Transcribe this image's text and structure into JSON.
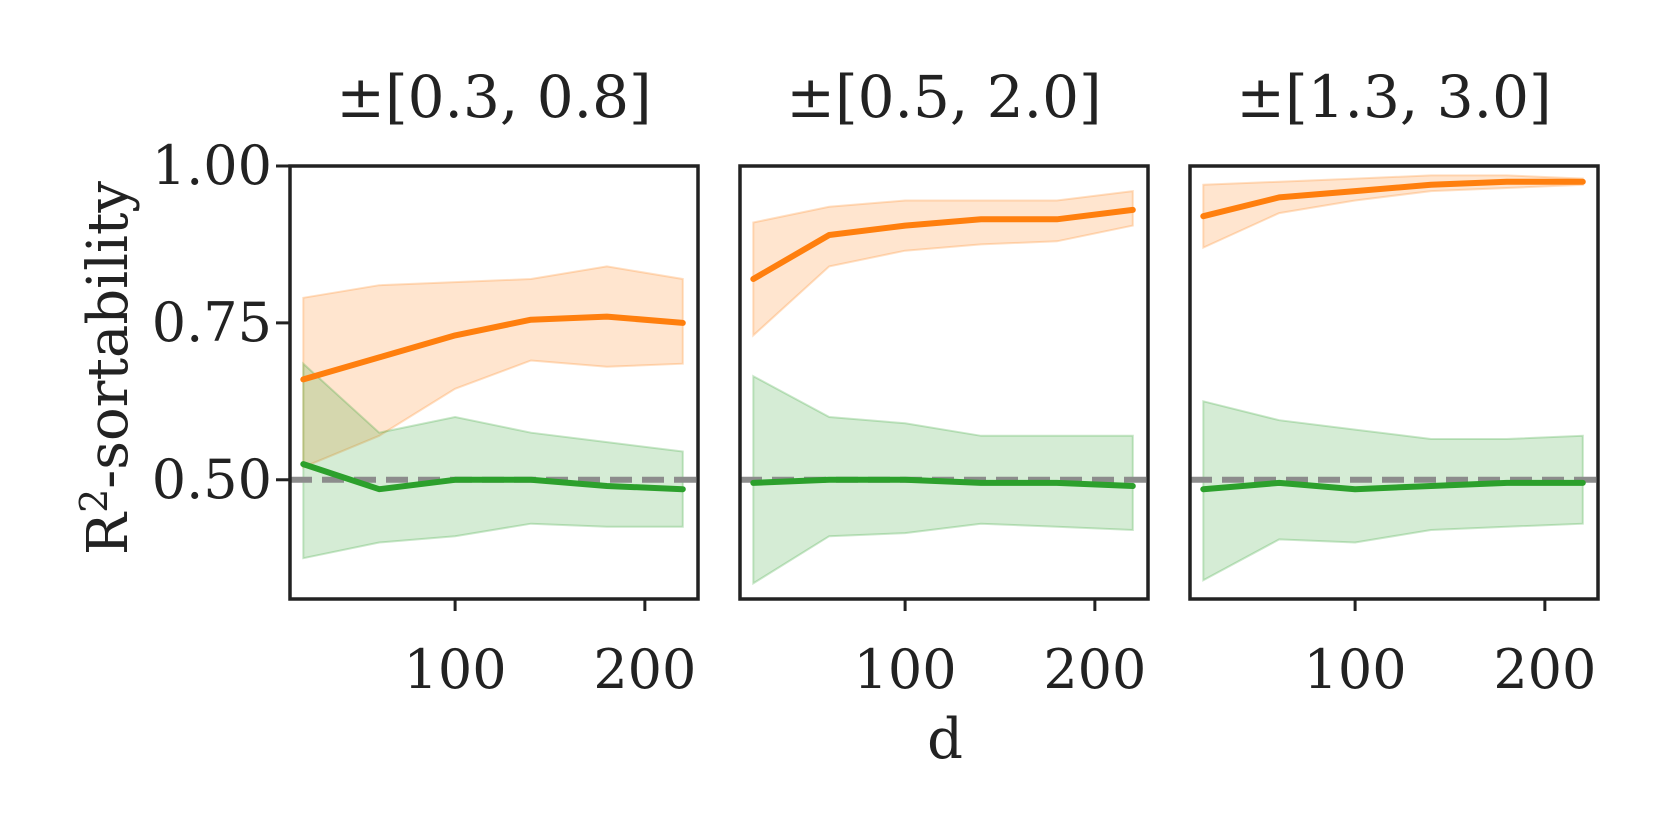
{
  "chart_data": {
    "type": "line",
    "ylabel": "R",
    "ylabel_sup": "2",
    "ylabel_suffix": "-sortability",
    "xlabel": "d",
    "xlim": [
      13,
      228
    ],
    "ylim": [
      0.31,
      1.0
    ],
    "yticks": [
      0.5,
      0.75,
      1.0
    ],
    "ytick_labels": [
      "0.50",
      "0.75",
      "1.00"
    ],
    "xticks": [
      100,
      200
    ],
    "xtick_labels": [
      "100",
      "200"
    ],
    "reference_line": {
      "y": 0.5,
      "color": "#8c8c8c",
      "style": "dashed"
    },
    "series_colors": {
      "orange": "#ff7f0e",
      "green": "#2ca02c"
    },
    "panels": [
      {
        "title": "±[0.3, 0.8]",
        "x": [
          20,
          60,
          100,
          140,
          180,
          220
        ],
        "series": [
          {
            "name": "orange",
            "color": "#ff7f0e",
            "values": [
              0.66,
              0.695,
              0.73,
              0.755,
              0.76,
              0.75
            ],
            "lower": [
              0.52,
              0.57,
              0.645,
              0.69,
              0.68,
              0.685
            ],
            "upper": [
              0.79,
              0.81,
              0.815,
              0.82,
              0.84,
              0.82
            ]
          },
          {
            "name": "green",
            "color": "#2ca02c",
            "values": [
              0.525,
              0.485,
              0.5,
              0.5,
              0.49,
              0.485
            ],
            "lower": [
              0.375,
              0.4,
              0.41,
              0.43,
              0.425,
              0.425
            ],
            "upper": [
              0.685,
              0.575,
              0.6,
              0.575,
              0.56,
              0.545
            ]
          }
        ]
      },
      {
        "title": "±[0.5, 2.0]",
        "x": [
          20,
          60,
          100,
          140,
          180,
          220
        ],
        "series": [
          {
            "name": "orange",
            "color": "#ff7f0e",
            "values": [
              0.82,
              0.89,
              0.905,
              0.915,
              0.915,
              0.93
            ],
            "lower": [
              0.73,
              0.84,
              0.865,
              0.875,
              0.88,
              0.905
            ],
            "upper": [
              0.91,
              0.935,
              0.945,
              0.945,
              0.945,
              0.96
            ]
          },
          {
            "name": "green",
            "color": "#2ca02c",
            "values": [
              0.495,
              0.5,
              0.5,
              0.495,
              0.495,
              0.49
            ],
            "lower": [
              0.335,
              0.41,
              0.415,
              0.43,
              0.425,
              0.42
            ],
            "upper": [
              0.665,
              0.6,
              0.59,
              0.57,
              0.57,
              0.57
            ]
          }
        ]
      },
      {
        "title": "±[1.3, 3.0]",
        "x": [
          20,
          60,
          100,
          140,
          180,
          220
        ],
        "series": [
          {
            "name": "orange",
            "color": "#ff7f0e",
            "values": [
              0.92,
              0.95,
              0.96,
              0.97,
              0.975,
              0.975
            ],
            "lower": [
              0.87,
              0.925,
              0.945,
              0.96,
              0.965,
              0.97
            ],
            "upper": [
              0.97,
              0.975,
              0.98,
              0.985,
              0.985,
              0.98
            ]
          },
          {
            "name": "green",
            "color": "#2ca02c",
            "values": [
              0.485,
              0.495,
              0.485,
              0.49,
              0.495,
              0.495
            ],
            "lower": [
              0.34,
              0.405,
              0.4,
              0.42,
              0.425,
              0.43
            ],
            "upper": [
              0.625,
              0.595,
              0.58,
              0.565,
              0.565,
              0.57
            ]
          }
        ]
      }
    ]
  }
}
